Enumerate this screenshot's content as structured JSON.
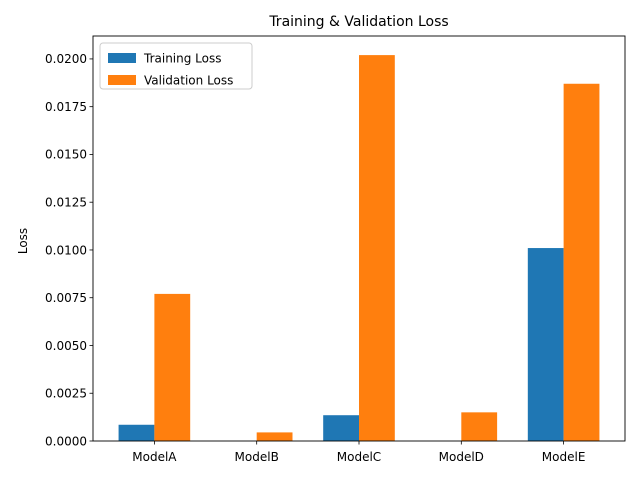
{
  "chart_data": {
    "type": "bar",
    "title": "Training & Validation Loss",
    "xlabel": "",
    "ylabel": "Loss",
    "categories": [
      "ModelA",
      "ModelB",
      "ModelC",
      "ModelD",
      "ModelE"
    ],
    "series": [
      {
        "name": "Training Loss",
        "color": "#1f77b4",
        "values": [
          0.00085,
          0.0,
          0.00135,
          0.0,
          0.0101
        ]
      },
      {
        "name": "Validation Loss",
        "color": "#ff7f0e",
        "values": [
          0.0077,
          0.00045,
          0.0202,
          0.0015,
          0.0187
        ]
      }
    ],
    "ylim": [
      0,
      0.0212
    ],
    "yticks": [
      "0.0000",
      "0.0025",
      "0.0050",
      "0.0075",
      "0.0100",
      "0.0125",
      "0.0150",
      "0.0175",
      "0.0200"
    ],
    "legend_position": "upper-left",
    "grid": false
  }
}
